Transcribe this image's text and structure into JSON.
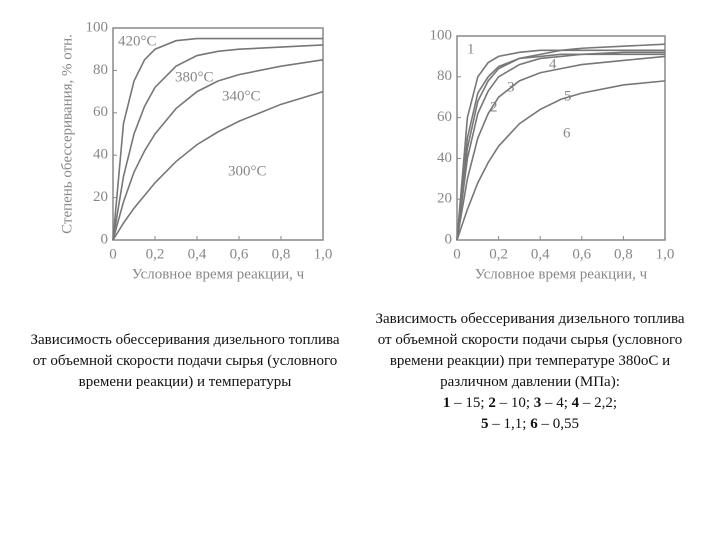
{
  "chart_data": [
    {
      "type": "line",
      "ylabel": "Степень обессеривания, % отн.",
      "xlabel": "Условное время реакции, ч",
      "x": [
        0,
        0.05,
        0.1,
        0.15,
        0.2,
        0.3,
        0.4,
        0.5,
        0.6,
        0.8,
        1.0
      ],
      "series": [
        {
          "name": "420°С",
          "color": "#777",
          "values": [
            0,
            55,
            75,
            85,
            90,
            94,
            95,
            95,
            95,
            95,
            95
          ]
        },
        {
          "name": "380°С",
          "color": "#777",
          "values": [
            0,
            30,
            50,
            63,
            72,
            82,
            87,
            89,
            90,
            91,
            92
          ]
        },
        {
          "name": "340°С",
          "color": "#777",
          "values": [
            0,
            18,
            32,
            42,
            50,
            62,
            70,
            75,
            78,
            82,
            85
          ]
        },
        {
          "name": "300°С",
          "color": "#777",
          "values": [
            0,
            8,
            15,
            21,
            27,
            37,
            45,
            51,
            56,
            64,
            70
          ]
        }
      ],
      "xlim": [
        0,
        1.0
      ],
      "ylim": [
        0,
        100
      ],
      "xticks": [
        0,
        {
          "value": 0.2,
          "label": "0,2"
        },
        {
          "value": 0.4,
          "label": "0,4"
        },
        {
          "value": 0.6,
          "label": "0,6"
        },
        {
          "value": 0.8,
          "label": "0,8"
        },
        {
          "value": 1.0,
          "label": "1,0"
        }
      ],
      "yticks": [
        0,
        20,
        40,
        60,
        80,
        100
      ]
    },
    {
      "type": "line",
      "xlabel": "Условное время реакции, ч",
      "x": [
        0,
        0.05,
        0.1,
        0.15,
        0.2,
        0.3,
        0.4,
        0.5,
        0.6,
        0.8,
        1.0
      ],
      "series": [
        {
          "name": "1",
          "color": "#777",
          "values": [
            0,
            60,
            80,
            87,
            90,
            92,
            93,
            93,
            93,
            93,
            93
          ]
        },
        {
          "name": "2",
          "color": "#777",
          "values": [
            0,
            50,
            72,
            80,
            85,
            89,
            90,
            91,
            91,
            91,
            91
          ]
        },
        {
          "name": "3",
          "color": "#777",
          "values": [
            0,
            40,
            62,
            73,
            80,
            86,
            89,
            90,
            91,
            92,
            92
          ]
        },
        {
          "name": "4",
          "color": "#777",
          "values": [
            0,
            45,
            68,
            78,
            84,
            89,
            91,
            93,
            94,
            95,
            96
          ]
        },
        {
          "name": "5",
          "color": "#777",
          "values": [
            0,
            30,
            50,
            62,
            70,
            78,
            82,
            84,
            86,
            88,
            90
          ]
        },
        {
          "name": "6",
          "color": "#777",
          "values": [
            0,
            15,
            28,
            38,
            46,
            57,
            64,
            69,
            72,
            76,
            78
          ]
        }
      ],
      "xlim": [
        0,
        1.0
      ],
      "ylim": [
        0,
        100
      ],
      "xticks": [
        0,
        {
          "value": 0.2,
          "label": "0,2"
        },
        {
          "value": 0.4,
          "label": "0,4"
        },
        {
          "value": 0.6,
          "label": "0,6"
        },
        {
          "value": 0.8,
          "label": "0,8"
        },
        {
          "value": 1.0,
          "label": "1,0"
        }
      ],
      "yticks": [
        0,
        20,
        40,
        60,
        80,
        100
      ]
    }
  ],
  "captions": [
    {
      "text": "Зависимость обессеривания дизельного топлива от объемной скорости подачи сырья (условного времени реакции) и температуры"
    },
    {
      "text": "Зависимость обессеривания дизельного топлива от объемной скорости подачи сырья (условного времени реакции) при температуре 380оС и различном давлении (МПа):",
      "key": [
        {
          "num": "1",
          "text": "– 15;"
        },
        {
          "num": "2",
          "text": "– 10;"
        },
        {
          "num": "3",
          "text": "– 4;"
        },
        {
          "num": "4",
          "text": "– 2,2;"
        },
        {
          "num": "5",
          "text": "– 1,1;"
        },
        {
          "num": "6",
          "text": "– 0,55"
        }
      ]
    }
  ]
}
